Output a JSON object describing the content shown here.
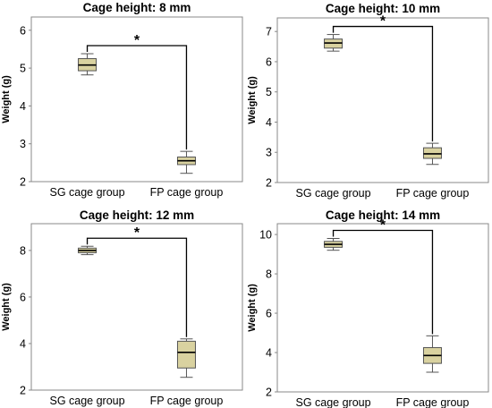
{
  "chart_data": [
    {
      "type": "box",
      "title": "Cage height: 8 mm",
      "ylabel": "Weight (g)",
      "categories": [
        "SG cage group",
        "FP cage group"
      ],
      "ylim": [
        2,
        6.35
      ],
      "yticks": [
        2,
        3,
        4,
        5,
        6
      ],
      "boxes": [
        {
          "category": "SG cage group",
          "min": 4.82,
          "q1": 4.93,
          "median": 5.08,
          "q3": 5.25,
          "max": 5.38
        },
        {
          "category": "FP cage group",
          "min": 2.22,
          "q1": 2.45,
          "median": 2.55,
          "q3": 2.65,
          "max": 2.8
        }
      ],
      "annotation": "*",
      "legend": null
    },
    {
      "type": "box",
      "title": "Cage height: 10 mm",
      "ylabel": "Weight (g)",
      "categories": [
        "SG cage group",
        "FP cage group"
      ],
      "ylim": [
        2,
        7.45
      ],
      "yticks": [
        2,
        3,
        4,
        5,
        6,
        7
      ],
      "boxes": [
        {
          "category": "SG cage group",
          "min": 6.35,
          "q1": 6.45,
          "median": 6.62,
          "q3": 6.75,
          "max": 6.9
        },
        {
          "category": "FP cage group",
          "min": 2.6,
          "q1": 2.8,
          "median": 2.95,
          "q3": 3.15,
          "max": 3.3
        }
      ],
      "annotation": "*",
      "legend": null
    },
    {
      "type": "box",
      "title": "Cage height: 12 mm",
      "ylabel": "Weight (g)",
      "categories": [
        "SG cage group",
        "FP cage group"
      ],
      "ylim": [
        2,
        9.15
      ],
      "yticks": [
        2,
        4,
        6,
        8
      ],
      "boxes": [
        {
          "category": "SG cage group",
          "min": 7.82,
          "q1": 7.9,
          "median": 8.0,
          "q3": 8.1,
          "max": 8.18
        },
        {
          "category": "FP cage group",
          "min": 2.55,
          "q1": 2.95,
          "median": 3.62,
          "q3": 4.1,
          "max": 4.2
        }
      ],
      "annotation": "*",
      "legend": null
    },
    {
      "type": "box",
      "title": "Cage height: 14 mm",
      "ylabel": "Weight (g)",
      "categories": [
        "SG cage group",
        "FP cage group"
      ],
      "ylim": [
        2,
        10.55
      ],
      "yticks": [
        2,
        4,
        6,
        8,
        10
      ],
      "boxes": [
        {
          "category": "SG cage group",
          "min": 9.2,
          "q1": 9.35,
          "median": 9.5,
          "q3": 9.65,
          "max": 9.8
        },
        {
          "category": "FP cage group",
          "min": 3.0,
          "q1": 3.45,
          "median": 3.85,
          "q3": 4.25,
          "max": 4.85
        }
      ],
      "annotation": "*",
      "legend": null
    }
  ],
  "colors": {
    "box_fill": "#d9d2a0",
    "box_stroke": "#555555",
    "frame": "#888888",
    "bracket": "#000000"
  }
}
